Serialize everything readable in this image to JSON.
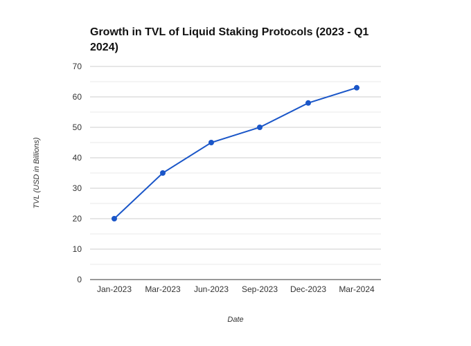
{
  "chart_data": {
    "type": "line",
    "title": "Growth in TVL of Liquid Staking Protocols (2023 - Q1 2024)",
    "xlabel": "Date",
    "ylabel": "TVL (USD in Billions)",
    "categories": [
      "Jan-2023",
      "Mar-2023",
      "Jun-2023",
      "Sep-2023",
      "Dec-2023",
      "Mar-2024"
    ],
    "series": [
      {
        "values": [
          20,
          35,
          45,
          50,
          58,
          63
        ]
      }
    ],
    "ylim": [
      0,
      70
    ],
    "yticks": [
      0,
      10,
      20,
      30,
      40,
      50,
      60,
      70
    ],
    "ytick_labels": [
      "0",
      "10",
      "20",
      "30",
      "40",
      "50",
      "60",
      "70"
    ],
    "grid": true,
    "legend": "none",
    "colors": {
      "line": "#1a56c8",
      "point": "#1a56c8",
      "grid_major": "#cccccc",
      "grid_minor": "#e8e8e8",
      "axis": "#333333"
    }
  }
}
